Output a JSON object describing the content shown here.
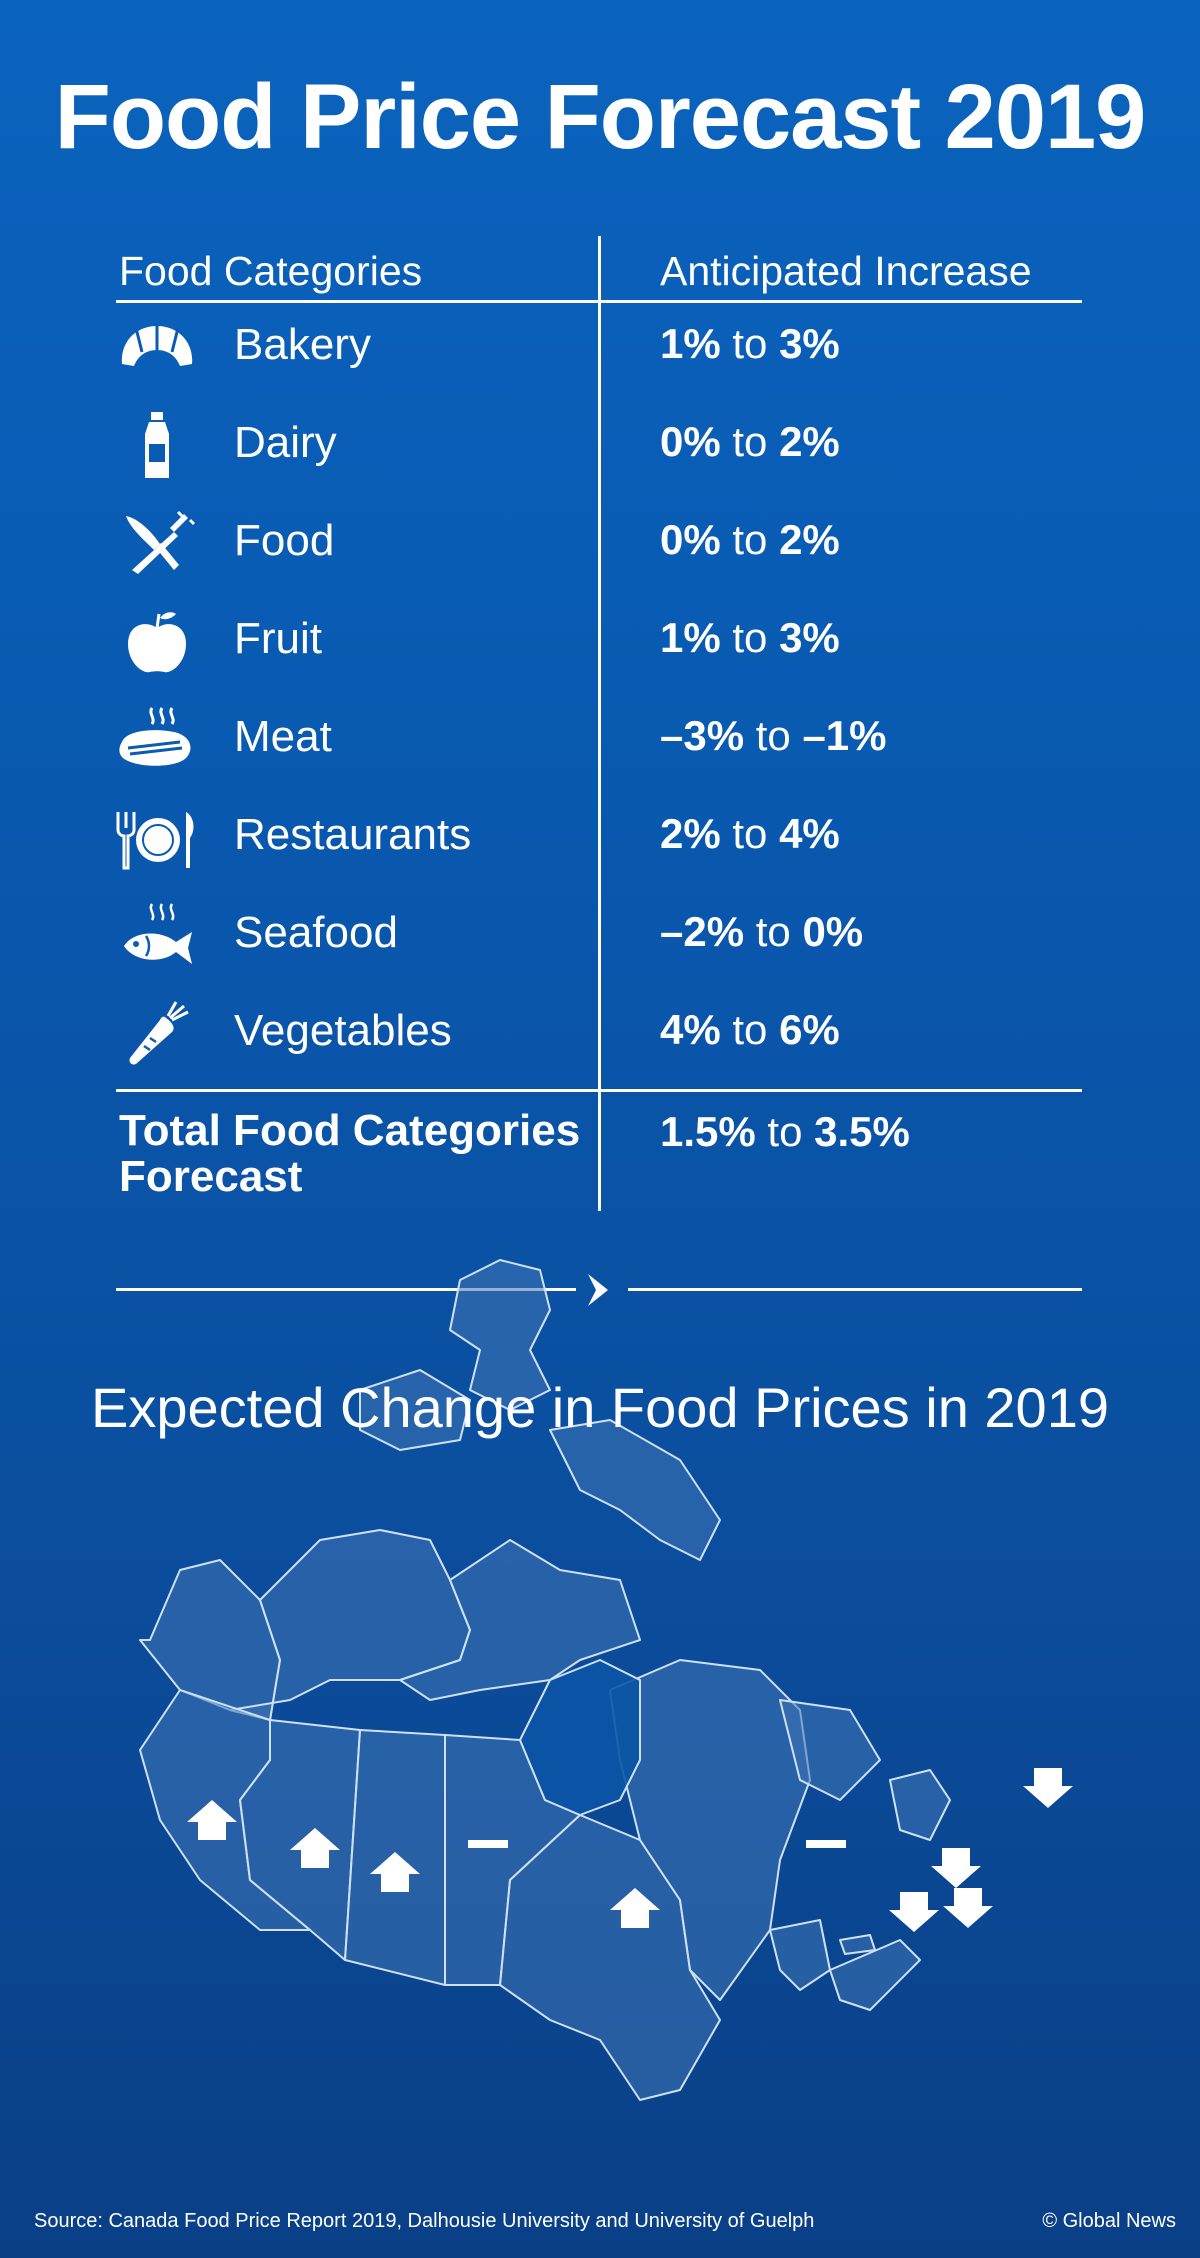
{
  "title": "Food Price Forecast 2019",
  "table": {
    "header_left": "Food Categories",
    "header_right": "Anticipated Increase",
    "rows": [
      {
        "icon": "croissant-icon",
        "category": "Bakery",
        "low": "1%",
        "to": " to ",
        "high": "3%"
      },
      {
        "icon": "milk-bottle-icon",
        "category": "Dairy",
        "low": "0%",
        "to": " to ",
        "high": "2%"
      },
      {
        "icon": "fork-knife-icon",
        "category": "Food",
        "low": "0%",
        "to": " to ",
        "high": "2%"
      },
      {
        "icon": "apple-icon",
        "category": "Fruit",
        "low": "1%",
        "to": " to ",
        "high": "3%"
      },
      {
        "icon": "steak-icon",
        "category": "Meat",
        "low": "–3%",
        "to": " to ",
        "high": "–1%"
      },
      {
        "icon": "plate-cutlery-icon",
        "category": "Restaurants",
        "low": "2%",
        "to": " to ",
        "high": "4%"
      },
      {
        "icon": "fish-icon",
        "category": "Seafood",
        "low": "–2%",
        "to": " to ",
        "high": "0%"
      },
      {
        "icon": "carrot-icon",
        "category": "Vegetables",
        "low": "4%",
        "to": " to ",
        "high": "6%"
      }
    ],
    "total": {
      "label": "Total Food Categories Forecast",
      "low": "1.5%",
      "to": " to ",
      "high": "3.5%"
    }
  },
  "map_section": {
    "title": "Expected Change in Food Prices in 2019",
    "provinces": [
      {
        "name": "British Columbia",
        "change": "up"
      },
      {
        "name": "Alberta",
        "change": "up"
      },
      {
        "name": "Saskatchewan",
        "change": "up"
      },
      {
        "name": "Manitoba",
        "change": "no change"
      },
      {
        "name": "Ontario",
        "change": "up"
      },
      {
        "name": "Quebec",
        "change": "no change"
      },
      {
        "name": "Newfoundland and Labrador",
        "change": "down"
      },
      {
        "name": "New Brunswick",
        "change": "down"
      },
      {
        "name": "Prince Edward Island",
        "change": "down"
      },
      {
        "name": "Nova Scotia",
        "change": "down"
      }
    ]
  },
  "footer": {
    "source": "Source: Canada Food Price Report 2019, Dalhousie University and University of Guelph",
    "credit": "© Global News"
  },
  "colors": {
    "background_top": "#0a63bd",
    "background_bottom": "#0a3f86",
    "text": "#ffffff",
    "map_fill": "#3f74b4"
  }
}
